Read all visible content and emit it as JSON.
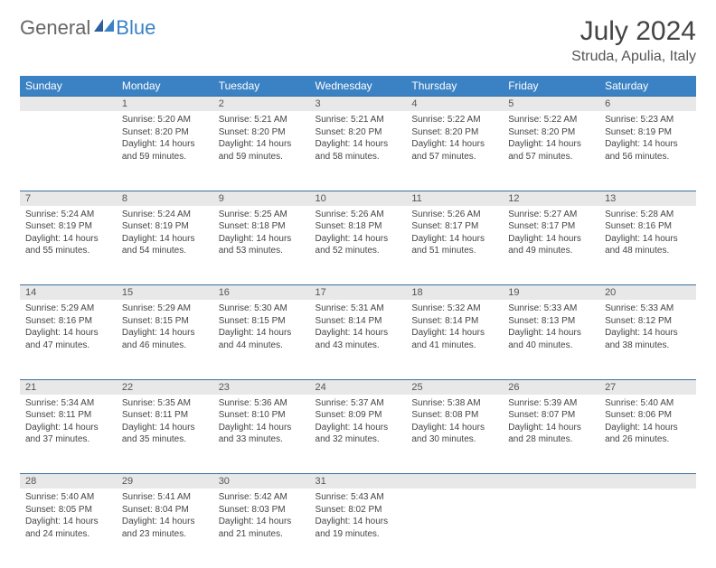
{
  "logo": {
    "text1": "General",
    "text2": "Blue"
  },
  "title": "July 2024",
  "location": "Struda, Apulia, Italy",
  "colors": {
    "header_bg": "#3b82c4",
    "header_text": "#ffffff",
    "daynum_bg": "#e8e8e8",
    "row_border": "#3b6fa0",
    "body_text": "#444444",
    "title_text": "#444444"
  },
  "day_headers": [
    "Sunday",
    "Monday",
    "Tuesday",
    "Wednesday",
    "Thursday",
    "Friday",
    "Saturday"
  ],
  "weeks": [
    {
      "nums": [
        "",
        "1",
        "2",
        "3",
        "4",
        "5",
        "6"
      ],
      "cells": [
        null,
        {
          "sunrise": "Sunrise: 5:20 AM",
          "sunset": "Sunset: 8:20 PM",
          "day1": "Daylight: 14 hours",
          "day2": "and 59 minutes."
        },
        {
          "sunrise": "Sunrise: 5:21 AM",
          "sunset": "Sunset: 8:20 PM",
          "day1": "Daylight: 14 hours",
          "day2": "and 59 minutes."
        },
        {
          "sunrise": "Sunrise: 5:21 AM",
          "sunset": "Sunset: 8:20 PM",
          "day1": "Daylight: 14 hours",
          "day2": "and 58 minutes."
        },
        {
          "sunrise": "Sunrise: 5:22 AM",
          "sunset": "Sunset: 8:20 PM",
          "day1": "Daylight: 14 hours",
          "day2": "and 57 minutes."
        },
        {
          "sunrise": "Sunrise: 5:22 AM",
          "sunset": "Sunset: 8:20 PM",
          "day1": "Daylight: 14 hours",
          "day2": "and 57 minutes."
        },
        {
          "sunrise": "Sunrise: 5:23 AM",
          "sunset": "Sunset: 8:19 PM",
          "day1": "Daylight: 14 hours",
          "day2": "and 56 minutes."
        }
      ]
    },
    {
      "nums": [
        "7",
        "8",
        "9",
        "10",
        "11",
        "12",
        "13"
      ],
      "cells": [
        {
          "sunrise": "Sunrise: 5:24 AM",
          "sunset": "Sunset: 8:19 PM",
          "day1": "Daylight: 14 hours",
          "day2": "and 55 minutes."
        },
        {
          "sunrise": "Sunrise: 5:24 AM",
          "sunset": "Sunset: 8:19 PM",
          "day1": "Daylight: 14 hours",
          "day2": "and 54 minutes."
        },
        {
          "sunrise": "Sunrise: 5:25 AM",
          "sunset": "Sunset: 8:18 PM",
          "day1": "Daylight: 14 hours",
          "day2": "and 53 minutes."
        },
        {
          "sunrise": "Sunrise: 5:26 AM",
          "sunset": "Sunset: 8:18 PM",
          "day1": "Daylight: 14 hours",
          "day2": "and 52 minutes."
        },
        {
          "sunrise": "Sunrise: 5:26 AM",
          "sunset": "Sunset: 8:17 PM",
          "day1": "Daylight: 14 hours",
          "day2": "and 51 minutes."
        },
        {
          "sunrise": "Sunrise: 5:27 AM",
          "sunset": "Sunset: 8:17 PM",
          "day1": "Daylight: 14 hours",
          "day2": "and 49 minutes."
        },
        {
          "sunrise": "Sunrise: 5:28 AM",
          "sunset": "Sunset: 8:16 PM",
          "day1": "Daylight: 14 hours",
          "day2": "and 48 minutes."
        }
      ]
    },
    {
      "nums": [
        "14",
        "15",
        "16",
        "17",
        "18",
        "19",
        "20"
      ],
      "cells": [
        {
          "sunrise": "Sunrise: 5:29 AM",
          "sunset": "Sunset: 8:16 PM",
          "day1": "Daylight: 14 hours",
          "day2": "and 47 minutes."
        },
        {
          "sunrise": "Sunrise: 5:29 AM",
          "sunset": "Sunset: 8:15 PM",
          "day1": "Daylight: 14 hours",
          "day2": "and 46 minutes."
        },
        {
          "sunrise": "Sunrise: 5:30 AM",
          "sunset": "Sunset: 8:15 PM",
          "day1": "Daylight: 14 hours",
          "day2": "and 44 minutes."
        },
        {
          "sunrise": "Sunrise: 5:31 AM",
          "sunset": "Sunset: 8:14 PM",
          "day1": "Daylight: 14 hours",
          "day2": "and 43 minutes."
        },
        {
          "sunrise": "Sunrise: 5:32 AM",
          "sunset": "Sunset: 8:14 PM",
          "day1": "Daylight: 14 hours",
          "day2": "and 41 minutes."
        },
        {
          "sunrise": "Sunrise: 5:33 AM",
          "sunset": "Sunset: 8:13 PM",
          "day1": "Daylight: 14 hours",
          "day2": "and 40 minutes."
        },
        {
          "sunrise": "Sunrise: 5:33 AM",
          "sunset": "Sunset: 8:12 PM",
          "day1": "Daylight: 14 hours",
          "day2": "and 38 minutes."
        }
      ]
    },
    {
      "nums": [
        "21",
        "22",
        "23",
        "24",
        "25",
        "26",
        "27"
      ],
      "cells": [
        {
          "sunrise": "Sunrise: 5:34 AM",
          "sunset": "Sunset: 8:11 PM",
          "day1": "Daylight: 14 hours",
          "day2": "and 37 minutes."
        },
        {
          "sunrise": "Sunrise: 5:35 AM",
          "sunset": "Sunset: 8:11 PM",
          "day1": "Daylight: 14 hours",
          "day2": "and 35 minutes."
        },
        {
          "sunrise": "Sunrise: 5:36 AM",
          "sunset": "Sunset: 8:10 PM",
          "day1": "Daylight: 14 hours",
          "day2": "and 33 minutes."
        },
        {
          "sunrise": "Sunrise: 5:37 AM",
          "sunset": "Sunset: 8:09 PM",
          "day1": "Daylight: 14 hours",
          "day2": "and 32 minutes."
        },
        {
          "sunrise": "Sunrise: 5:38 AM",
          "sunset": "Sunset: 8:08 PM",
          "day1": "Daylight: 14 hours",
          "day2": "and 30 minutes."
        },
        {
          "sunrise": "Sunrise: 5:39 AM",
          "sunset": "Sunset: 8:07 PM",
          "day1": "Daylight: 14 hours",
          "day2": "and 28 minutes."
        },
        {
          "sunrise": "Sunrise: 5:40 AM",
          "sunset": "Sunset: 8:06 PM",
          "day1": "Daylight: 14 hours",
          "day2": "and 26 minutes."
        }
      ]
    },
    {
      "nums": [
        "28",
        "29",
        "30",
        "31",
        "",
        "",
        ""
      ],
      "cells": [
        {
          "sunrise": "Sunrise: 5:40 AM",
          "sunset": "Sunset: 8:05 PM",
          "day1": "Daylight: 14 hours",
          "day2": "and 24 minutes."
        },
        {
          "sunrise": "Sunrise: 5:41 AM",
          "sunset": "Sunset: 8:04 PM",
          "day1": "Daylight: 14 hours",
          "day2": "and 23 minutes."
        },
        {
          "sunrise": "Sunrise: 5:42 AM",
          "sunset": "Sunset: 8:03 PM",
          "day1": "Daylight: 14 hours",
          "day2": "and 21 minutes."
        },
        {
          "sunrise": "Sunrise: 5:43 AM",
          "sunset": "Sunset: 8:02 PM",
          "day1": "Daylight: 14 hours",
          "day2": "and 19 minutes."
        },
        null,
        null,
        null
      ]
    }
  ]
}
